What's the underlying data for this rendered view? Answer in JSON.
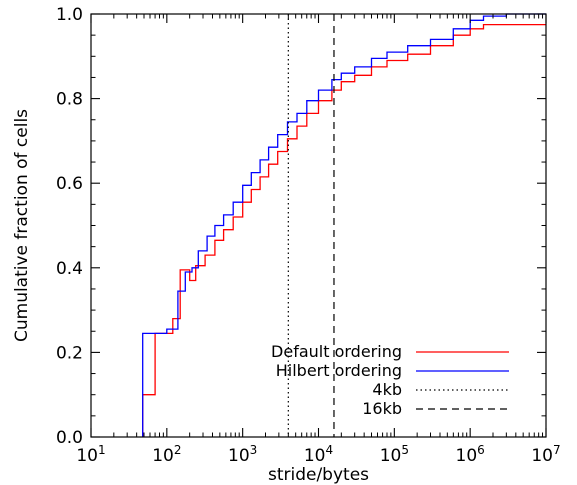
{
  "chart_data": {
    "type": "line",
    "title": "",
    "xlabel": "stride/bytes",
    "ylabel": "Cumulative fraction of cells",
    "x_scale": "log",
    "xlim": [
      10,
      10000000
    ],
    "ylim": [
      0.0,
      1.0
    ],
    "x_ticks": [
      10,
      100,
      1000,
      10000,
      100000,
      1000000,
      10000000
    ],
    "x_tick_labels": [
      {
        "base": "10",
        "exp": "1"
      },
      {
        "base": "10",
        "exp": "2"
      },
      {
        "base": "10",
        "exp": "3"
      },
      {
        "base": "10",
        "exp": "4"
      },
      {
        "base": "10",
        "exp": "5"
      },
      {
        "base": "10",
        "exp": "6"
      },
      {
        "base": "10",
        "exp": "7"
      }
    ],
    "y_ticks": [
      0.0,
      0.2,
      0.4,
      0.6,
      0.8,
      1.0
    ],
    "y_tick_labels": [
      "0.0",
      "0.2",
      "0.4",
      "0.6",
      "0.8",
      "1.0"
    ],
    "grid": false,
    "legend_position": "bottom-right",
    "series": [
      {
        "name": "Default ordering",
        "color": "#ff0000",
        "style": "step",
        "points": [
          [
            48,
            0.0
          ],
          [
            48,
            0.1
          ],
          [
            70,
            0.1
          ],
          [
            70,
            0.245
          ],
          [
            120,
            0.245
          ],
          [
            120,
            0.28
          ],
          [
            150,
            0.28
          ],
          [
            150,
            0.395
          ],
          [
            185,
            0.395
          ],
          [
            200,
            0.37
          ],
          [
            240,
            0.405
          ],
          [
            320,
            0.43
          ],
          [
            430,
            0.465
          ],
          [
            560,
            0.49
          ],
          [
            750,
            0.52
          ],
          [
            1000,
            0.555
          ],
          [
            1300,
            0.585
          ],
          [
            1700,
            0.615
          ],
          [
            2200,
            0.645
          ],
          [
            2900,
            0.675
          ],
          [
            3900,
            0.705
          ],
          [
            5200,
            0.735
          ],
          [
            7000,
            0.765
          ],
          [
            10000,
            0.795
          ],
          [
            15000,
            0.82
          ],
          [
            20000,
            0.84
          ],
          [
            30000,
            0.855
          ],
          [
            50000,
            0.875
          ],
          [
            80000,
            0.89
          ],
          [
            150000,
            0.905
          ],
          [
            300000,
            0.925
          ],
          [
            600000,
            0.95
          ],
          [
            1000000,
            0.965
          ],
          [
            1500000,
            0.975
          ],
          [
            10000000,
            0.975
          ]
        ]
      },
      {
        "name": "Hilbert ordering",
        "color": "#0000ff",
        "style": "step",
        "points": [
          [
            48,
            0.0
          ],
          [
            48,
            0.245
          ],
          [
            100,
            0.245
          ],
          [
            100,
            0.255
          ],
          [
            140,
            0.255
          ],
          [
            140,
            0.345
          ],
          [
            175,
            0.345
          ],
          [
            175,
            0.39
          ],
          [
            215,
            0.4
          ],
          [
            260,
            0.44
          ],
          [
            340,
            0.475
          ],
          [
            430,
            0.5
          ],
          [
            560,
            0.525
          ],
          [
            750,
            0.555
          ],
          [
            1000,
            0.595
          ],
          [
            1300,
            0.625
          ],
          [
            1700,
            0.655
          ],
          [
            2200,
            0.685
          ],
          [
            2900,
            0.715
          ],
          [
            3900,
            0.745
          ],
          [
            5200,
            0.765
          ],
          [
            7000,
            0.795
          ],
          [
            10000,
            0.82
          ],
          [
            15000,
            0.845
          ],
          [
            20000,
            0.86
          ],
          [
            30000,
            0.875
          ],
          [
            50000,
            0.895
          ],
          [
            80000,
            0.91
          ],
          [
            150000,
            0.925
          ],
          [
            300000,
            0.94
          ],
          [
            600000,
            0.965
          ],
          [
            1000000,
            0.985
          ],
          [
            1500000,
            0.995
          ],
          [
            3000000,
            1.0
          ],
          [
            10000000,
            1.0
          ]
        ]
      }
    ],
    "reference_lines": [
      {
        "name": "4kb",
        "x": 4000,
        "style": "dotted"
      },
      {
        "name": "16kb",
        "x": 16000,
        "style": "dashed"
      }
    ]
  }
}
